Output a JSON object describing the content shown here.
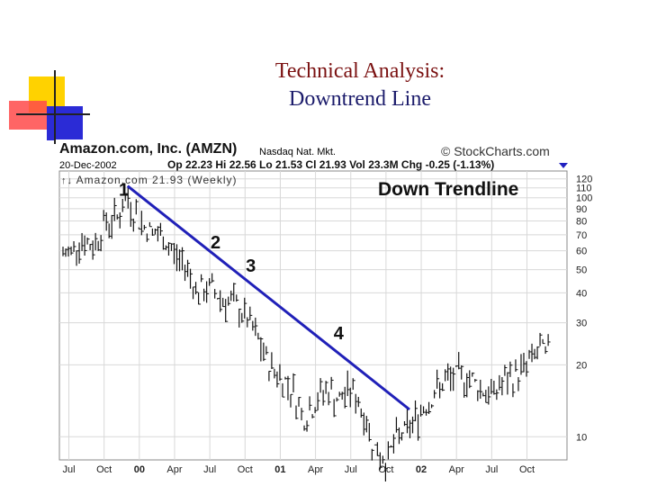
{
  "slide": {
    "title_line1": "Technical Analysis:",
    "title_line2": "Downtrend Line",
    "accent_yellow": "#ffd200",
    "accent_red": "#ff4040",
    "accent_blue": "#2a2ad0"
  },
  "chart_header": {
    "company": "Amazon.com, Inc. (AMZN)",
    "exchange": "Nasdaq Nat. Mkt.",
    "source": "© StockCharts.com",
    "date": "20-Dec-2002",
    "quote": "Op 22.23 Hi 22.56 Lo 21.53 Cl 21.93 Vol 23.3M Chg -0.25 (-1.13%)",
    "series_label": "Amazon.com 21.93 (Weekly)",
    "annotation": "Down Trendline"
  },
  "chart_data": {
    "type": "line",
    "title": "Amazon.com, Inc. (AMZN)",
    "scale": "log",
    "ylim": [
      8,
      125
    ],
    "y_ticks": [
      10,
      20,
      30,
      40,
      50,
      60,
      70,
      80,
      90,
      100,
      110,
      120
    ],
    "y_tick_labels": [
      "10",
      "20",
      "30",
      "40",
      "50",
      "60",
      "70",
      "80",
      "90",
      "100",
      "110",
      "120"
    ],
    "x_ticks": [
      {
        "label": "Jul",
        "bold": false
      },
      {
        "label": "Oct",
        "bold": false
      },
      {
        "label": "00",
        "bold": true
      },
      {
        "label": "Apr",
        "bold": false
      },
      {
        "label": "Jul",
        "bold": false
      },
      {
        "label": "Oct",
        "bold": false
      },
      {
        "label": "01",
        "bold": true
      },
      {
        "label": "Apr",
        "bold": false
      },
      {
        "label": "Jul",
        "bold": false
      },
      {
        "label": "Oct",
        "bold": false
      },
      {
        "label": "02",
        "bold": true
      },
      {
        "label": "Apr",
        "bold": false
      },
      {
        "label": "Jul",
        "bold": false
      },
      {
        "label": "Oct",
        "bold": false
      }
    ],
    "series": [
      {
        "x": [
          "1999-07",
          "1999-08",
          "1999-09",
          "1999-10",
          "1999-11",
          "1999-12",
          "2000-01",
          "2000-02",
          "2000-03",
          "2000-04",
          "2000-05",
          "2000-06",
          "2000-07",
          "2000-08",
          "2000-09",
          "2000-10",
          "2000-11",
          "2000-12",
          "2001-01",
          "2001-02",
          "2001-03",
          "2001-04",
          "2001-05",
          "2001-06",
          "2001-07",
          "2001-08",
          "2001-09",
          "2001-10",
          "2001-11",
          "2001-12",
          "2002-01",
          "2002-02",
          "2002-03",
          "2002-04",
          "2002-05",
          "2002-06",
          "2002-07",
          "2002-08",
          "2002-09",
          "2002-10",
          "2002-11",
          "2002-12"
        ],
        "y": [
          58,
          68,
          62,
          78,
          82,
          100,
          80,
          72,
          68,
          58,
          52,
          40,
          42,
          38,
          36,
          32,
          26,
          20,
          18,
          16,
          12,
          14,
          16,
          14,
          16,
          13,
          9,
          8,
          10,
          11,
          13,
          15,
          17,
          18,
          18,
          16,
          15,
          17,
          18,
          20,
          23,
          21.93
        ]
      }
    ],
    "trendline": {
      "from": [
        "1999-12",
        112
      ],
      "to": [
        "2001-12",
        13
      ]
    },
    "touch_points": [
      "1",
      "2",
      "3",
      "4"
    ]
  }
}
